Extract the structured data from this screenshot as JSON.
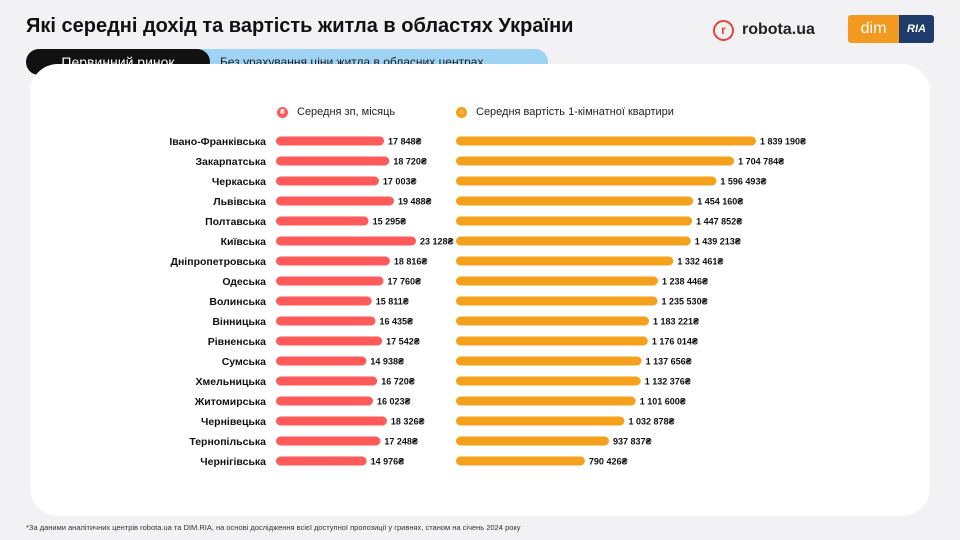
{
  "header": {
    "title": "Які середні дохід та вартість житла в областях України",
    "robota_logo_mark": "r",
    "robota_logo_text": "robota.ua",
    "dim_logo_text": "dim",
    "ria_logo_text": "RIA"
  },
  "tabs": {
    "primary": "Первинний ринок",
    "secondary": "Без урахування ціни житла в обласних центрах"
  },
  "footnote": "*За даними аналітичних центрів  robota.ua та DIM.RIA, на основі дослідження всієї доступної пропозиції у гривнях, станом на січень 2024 року",
  "colors": {
    "salary": "#ff5a5a",
    "apartment": "#f5a11c",
    "accent_dark": "#111111",
    "tab_secondary": "#9fd3f4"
  },
  "chart_data": {
    "type": "bar",
    "orientation": "horizontal",
    "currency_suffix": "₴",
    "categories": [
      "Івано-Франківська",
      "Закарпатська",
      "Черкаська",
      "Львівська",
      "Полтавська",
      "Київська",
      "Дніпропетровська",
      "Одеська",
      "Волинська",
      "Вінницька",
      "Рівненська",
      "Сумська",
      "Хмельницька",
      "Житомирська",
      "Чернівецька",
      "Тернопільська",
      "Чернігівська"
    ],
    "series": [
      {
        "name": "Середня зп, місяць",
        "icon": "hryvnia-icon",
        "color": "#ff5a5a",
        "values": [
          17848,
          18720,
          17003,
          19488,
          15295,
          23128,
          18816,
          17760,
          15811,
          16435,
          17542,
          14938,
          16720,
          16023,
          18326,
          17248,
          14976
        ],
        "labels": [
          "17 848₴",
          "18 720₴",
          "17 003₴",
          "19 488₴",
          "15 295₴",
          "23 128₴",
          "18 816₴",
          "17 760₴",
          "15 811₴",
          "16 435₴",
          "17 542₴",
          "14 938₴",
          "16 720₴",
          "16 023₴",
          "18 326₴",
          "17 248₴",
          "14 976₴"
        ]
      },
      {
        "name": "Середня вартість 1-кімнатної квартири",
        "icon": "house-icon",
        "color": "#f5a11c",
        "values": [
          1839190,
          1704784,
          1596493,
          1454160,
          1447852,
          1439213,
          1332461,
          1238446,
          1235530,
          1183221,
          1176014,
          1137656,
          1132376,
          1101600,
          1032878,
          937837,
          790426
        ],
        "labels": [
          "1 839 190₴",
          "1 704 784₴",
          "1 596 493₴",
          "1 454 160₴",
          "1 447 852₴",
          "1 439 213₴",
          "1 332 461₴",
          "1 238 446₴",
          "1 235 530₴",
          "1 183 221₴",
          "1 176 014₴",
          "1 137 656₴",
          "1 132 376₴",
          "1 101 600₴",
          "1 032 878₴",
          "937 837₴",
          "790 426₴"
        ]
      }
    ],
    "grid": false,
    "legend_position": "top"
  }
}
